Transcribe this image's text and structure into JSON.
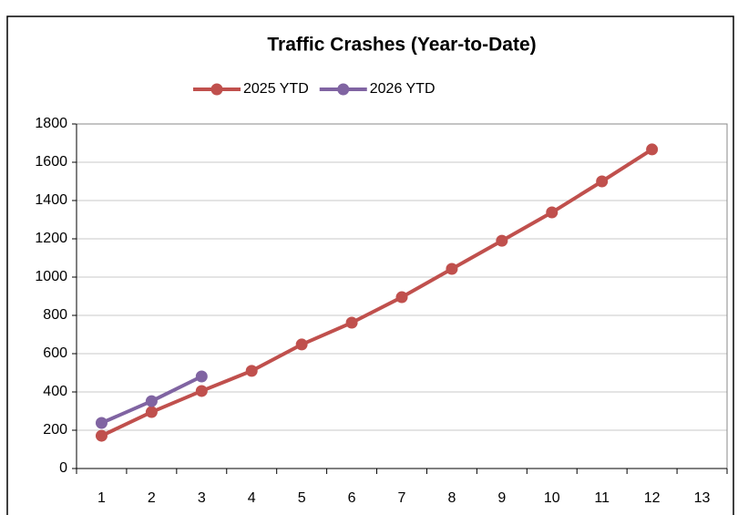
{
  "chart_data": {
    "type": "line",
    "title": "Traffic Crashes  (Year-to-Date)",
    "categories": [
      "1",
      "2",
      "3",
      "4",
      "5",
      "6",
      "7",
      "8",
      "9",
      "10",
      "11",
      "12",
      "13"
    ],
    "series": [
      {
        "name": "2025 YTD",
        "color": "#c0504d",
        "values": [
          171,
          295,
          405,
          510,
          648,
          762,
          895,
          1043,
          1190,
          1338,
          1500,
          1667,
          null
        ]
      },
      {
        "name": "2026 YTD",
        "color": "#8064a2",
        "values": [
          238,
          352,
          481,
          null,
          null,
          null,
          null,
          null,
          null,
          null,
          null,
          null,
          null
        ]
      }
    ],
    "ylim": [
      0,
      1800
    ],
    "yticks": [
      0,
      200,
      400,
      600,
      800,
      1000,
      1200,
      1400,
      1600,
      1800
    ],
    "grid": true,
    "legend": "top"
  }
}
